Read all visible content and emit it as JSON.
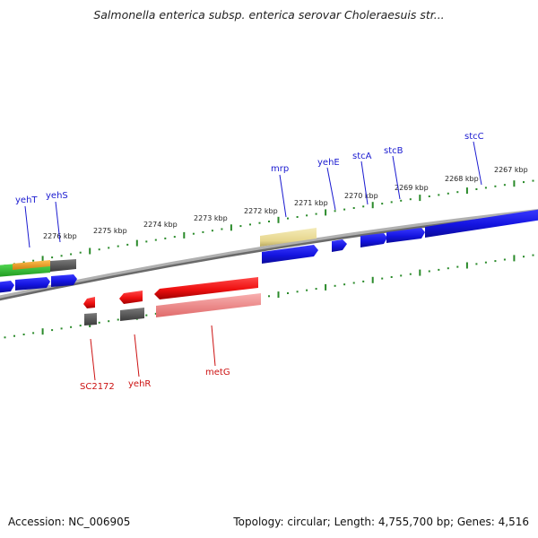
{
  "title": "Salmonella enterica subsp. enterica serovar Choleraesuis str...",
  "footer": {
    "accession": "Accession: NC_006905",
    "summary": "Topology: circular; Length: 4,755,700 bp; Genes: 4,516"
  },
  "ruler": {
    "unit": "kbp",
    "ticks": [
      {
        "label": "2276 kbp"
      },
      {
        "label": "2275 kbp"
      },
      {
        "label": "2274 kbp"
      },
      {
        "label": "2273 kbp"
      },
      {
        "label": "2272 kbp"
      },
      {
        "label": "2271 kbp"
      },
      {
        "label": "2270 kbp"
      },
      {
        "label": "2269 kbp"
      },
      {
        "label": "2268 kbp"
      },
      {
        "label": "2267 kbp"
      }
    ]
  },
  "genes_forward": [
    {
      "label": "yehT"
    },
    {
      "label": "yehS"
    },
    {
      "label": "mrp"
    },
    {
      "label": "yehE"
    },
    {
      "label": "stcA"
    },
    {
      "label": "stcB"
    },
    {
      "label": "stcC"
    }
  ],
  "genes_reverse": [
    {
      "label": "SC2172"
    },
    {
      "label": "yehR"
    },
    {
      "label": "metG"
    }
  ],
  "colors": {
    "forward_label": "#1a1ad0",
    "reverse_label": "#cc1111",
    "ruler": "#2a8a2a",
    "backbone": "#7a7a7a",
    "cds_forward": "#1515e0",
    "cds_reverse": "#ee1111",
    "gene_grey": "#5a5a5a",
    "gene_tan": "#e9dc98",
    "gene_pink": "#f08a8a",
    "gene_green": "#33cc33",
    "gene_orange": "#f0a020"
  }
}
